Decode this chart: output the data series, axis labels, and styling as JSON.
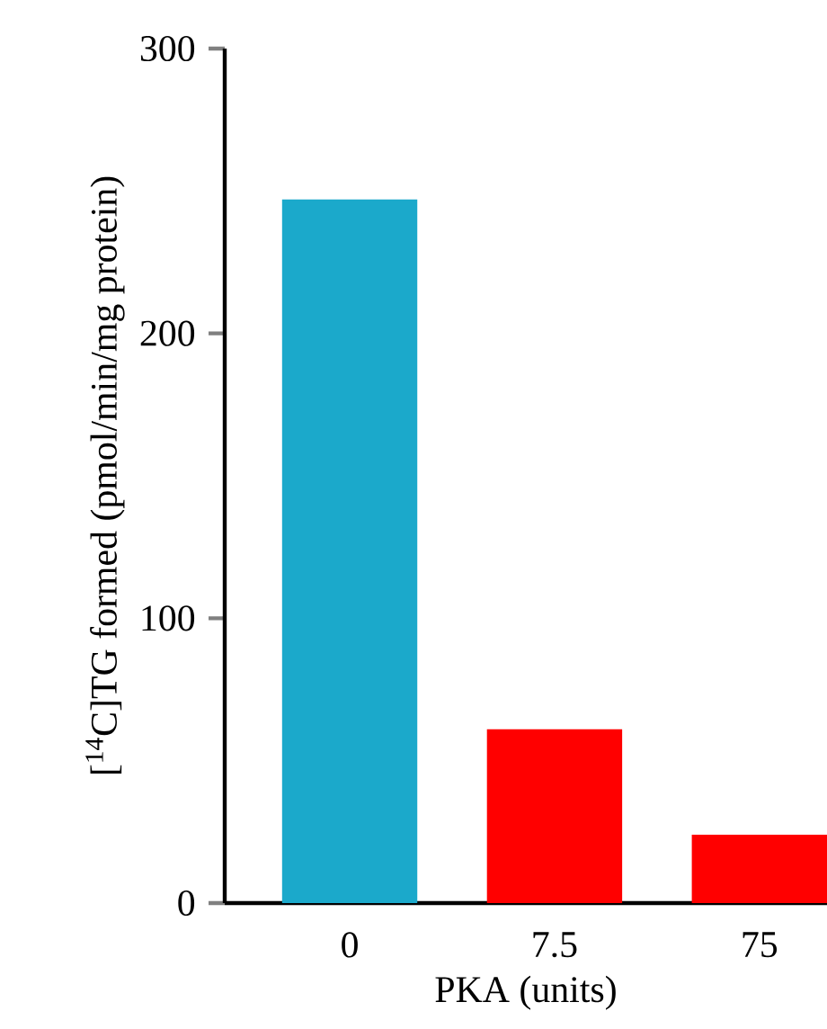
{
  "chart_data": {
    "type": "bar",
    "xlabel": "PKA (units)",
    "ylabel": "[$^{14}$C]TG formed (pmol/min/mg protein)",
    "categories": [
      "0",
      "7.5",
      "75"
    ],
    "values": [
      247,
      61,
      24
    ],
    "colors": [
      "#1ba9cb",
      "#ff0000",
      "#ff0000"
    ],
    "ylim": [
      0,
      300
    ],
    "yticks": [
      0,
      100,
      200,
      300
    ]
  }
}
